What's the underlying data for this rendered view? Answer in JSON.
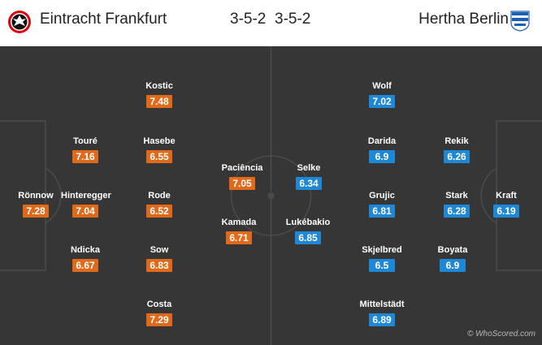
{
  "header": {
    "home_team": "Eintracht Frankfurt",
    "away_team": "Hertha Berlin",
    "home_formation": "3-5-2",
    "away_formation": "3-5-2",
    "home_crest_icon": "eintracht-frankfurt-crest-icon",
    "away_crest_icon": "hertha-berlin-crest-icon"
  },
  "colors": {
    "pitch": "#363636",
    "pitch_lines": "#4a4a4a",
    "home_rating": "#e06a19",
    "away_rating": "#1e88d7"
  },
  "home_players": [
    {
      "name": "Rönnow",
      "rating": "7.28"
    },
    {
      "name": "Touré",
      "rating": "7.16"
    },
    {
      "name": "Hinteregger",
      "rating": "7.04"
    },
    {
      "name": "Ndicka",
      "rating": "6.67"
    },
    {
      "name": "Kostic",
      "rating": "7.48"
    },
    {
      "name": "Hasebe",
      "rating": "6.55"
    },
    {
      "name": "Rode",
      "rating": "6.52"
    },
    {
      "name": "Sow",
      "rating": "6.83"
    },
    {
      "name": "Costa",
      "rating": "7.29"
    },
    {
      "name": "Paciência",
      "rating": "7.05"
    },
    {
      "name": "Kamada",
      "rating": "6.71"
    }
  ],
  "away_players": [
    {
      "name": "Kraft",
      "rating": "6.19"
    },
    {
      "name": "Rekik",
      "rating": "6.26"
    },
    {
      "name": "Stark",
      "rating": "6.28"
    },
    {
      "name": "Boyata",
      "rating": "6.9"
    },
    {
      "name": "Wolf",
      "rating": "7.02"
    },
    {
      "name": "Darida",
      "rating": "6.9"
    },
    {
      "name": "Grujic",
      "rating": "6.81"
    },
    {
      "name": "Skjelbred",
      "rating": "6.5"
    },
    {
      "name": "Mittelstädt",
      "rating": "6.89"
    },
    {
      "name": "Selke",
      "rating": "6.34"
    },
    {
      "name": "Lukébakio",
      "rating": "6.85"
    }
  ],
  "watermark": "© WhoScored.com"
}
